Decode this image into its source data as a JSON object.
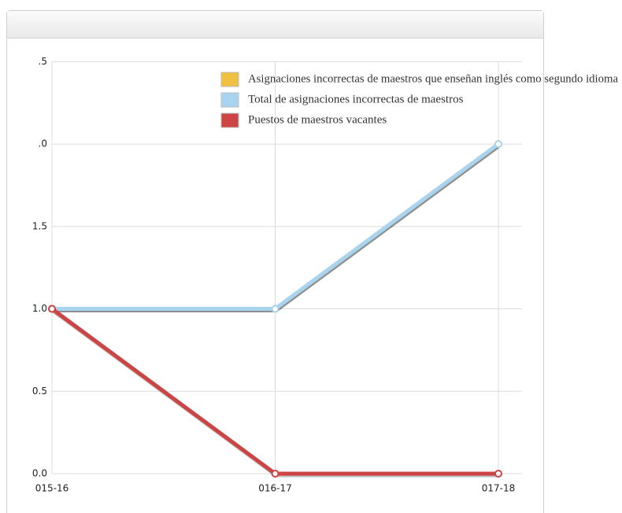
{
  "chart_data": {
    "type": "line",
    "categories": [
      "015-16",
      "016-17",
      "017-18"
    ],
    "series": [
      {
        "name": "Asignaciones incorrectas de maestros que enseñan inglés como segundo idioma",
        "color": "#f0c040",
        "values": [
          1,
          1,
          2
        ]
      },
      {
        "name": "Total de asignaciones incorrectas de maestros",
        "color": "#a8d4f0",
        "values": [
          1,
          1,
          2
        ]
      },
      {
        "name": "Puestos de maestros vacantes",
        "color": "#cc4444",
        "values": [
          1,
          0,
          0
        ]
      }
    ],
    "ylim": [
      0,
      2.5
    ],
    "yticks": [
      0.0,
      0.5,
      1.0,
      1.5,
      {
        "value": 2,
        "label": ".0"
      },
      {
        "value": 2.5,
        "label": ".5"
      }
    ],
    "grid": true
  }
}
